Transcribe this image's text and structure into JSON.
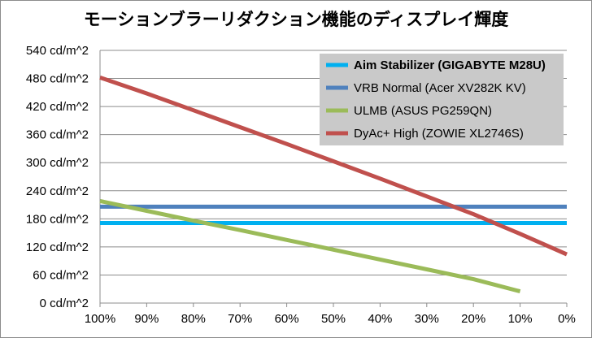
{
  "chart_data": {
    "type": "line",
    "title": "モーションブラーリダクション機能のディスプレイ輝度",
    "xlabel": "",
    "ylabel": "",
    "x": [
      "100%",
      "90%",
      "80%",
      "70%",
      "60%",
      "50%",
      "40%",
      "30%",
      "20%",
      "10%",
      "0%"
    ],
    "x_values": [
      100,
      90,
      80,
      70,
      60,
      50,
      40,
      30,
      20,
      10,
      0
    ],
    "x_reversed": true,
    "ylim": [
      0,
      540
    ],
    "y_ticks": [
      "0 cd/m^2",
      "60 cd/m^2",
      "120 cd/m^2",
      "180 cd/m^2",
      "240 cd/m^2",
      "300 cd/m^2",
      "360 cd/m^2",
      "420 cd/m^2",
      "480 cd/m^2",
      "540 cd/m^2"
    ],
    "y_tick_values": [
      0,
      60,
      120,
      180,
      240,
      300,
      360,
      420,
      480,
      540
    ],
    "grid": "horizontal",
    "legend_position": "top-right",
    "series": [
      {
        "name": "Aim Stabilizer (GIGABYTE M28U)",
        "color": "#00b0f0",
        "bold": true,
        "points": [
          [
            100,
            171
          ],
          [
            0,
            171
          ]
        ]
      },
      {
        "name": "VRB Normal (Acer XV282K KV)",
        "color": "#4f81bd",
        "bold": false,
        "points": [
          [
            100,
            206
          ],
          [
            0,
            206
          ]
        ]
      },
      {
        "name": "ULMB (ASUS PG259QN)",
        "color": "#9bbb59",
        "bold": false,
        "points": [
          [
            100,
            218
          ],
          [
            90,
            197
          ],
          [
            80,
            176
          ],
          [
            70,
            156
          ],
          [
            60,
            135
          ],
          [
            50,
            114
          ],
          [
            40,
            93
          ],
          [
            30,
            72
          ],
          [
            20,
            51
          ],
          [
            10,
            25
          ]
        ]
      },
      {
        "name": "DyAc+ High (ZOWIE XL2746S)",
        "color": "#c0504d",
        "bold": false,
        "points": [
          [
            100,
            482
          ],
          [
            90,
            448
          ],
          [
            80,
            412
          ],
          [
            70,
            376
          ],
          [
            60,
            340
          ],
          [
            50,
            303
          ],
          [
            40,
            266
          ],
          [
            30,
            228
          ],
          [
            20,
            190
          ],
          [
            10,
            148
          ],
          [
            0,
            104
          ]
        ]
      }
    ]
  }
}
